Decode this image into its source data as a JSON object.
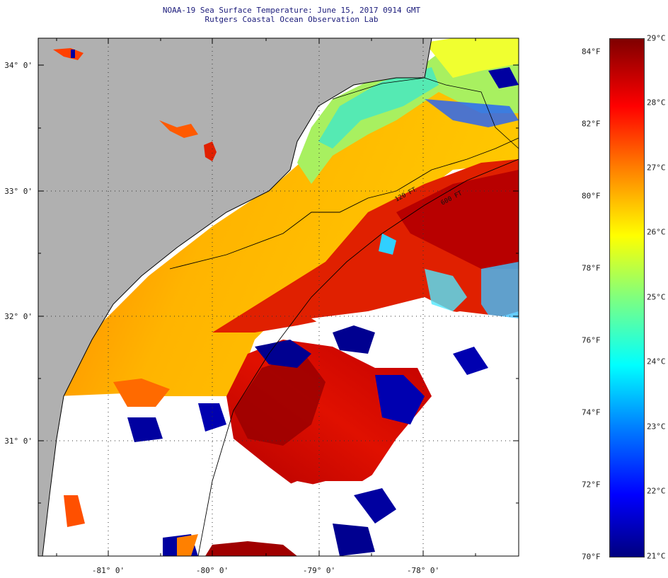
{
  "header": {
    "title": "NOAA-19 Sea Surface Temperature:  June 15, 2017 0914 GMT",
    "subtitle": "Rutgers Coastal Ocean Observation Lab"
  },
  "map": {
    "lat_labels": [
      "34° 0'",
      "33° 0'",
      "32° 0'",
      "31° 0'"
    ],
    "lon_labels": [
      "-81° 0'",
      "-80° 0'",
      "-79° 0'",
      "-78° 0'"
    ],
    "contour_labels": [
      "120 FT",
      "600 FT"
    ],
    "colors": {
      "land": "#b0b0b0",
      "cloud": "#ffffff",
      "frame": "#000000"
    }
  },
  "colorbar": {
    "fahrenheit_labels": [
      "84°F",
      "82°F",
      "80°F",
      "78°F",
      "76°F",
      "74°F",
      "72°F",
      "70°F"
    ],
    "celsius_labels": [
      "29°C",
      "28°C",
      "27°C",
      "26°C",
      "25°C",
      "24°C",
      "23°C",
      "22°C",
      "21°C"
    ],
    "range_c": [
      21,
      29
    ],
    "colors": [
      "#00007f",
      "#0000ff",
      "#007fff",
      "#00ffff",
      "#7fff7f",
      "#ffff00",
      "#ff7f00",
      "#ff0000",
      "#7f0000"
    ]
  }
}
